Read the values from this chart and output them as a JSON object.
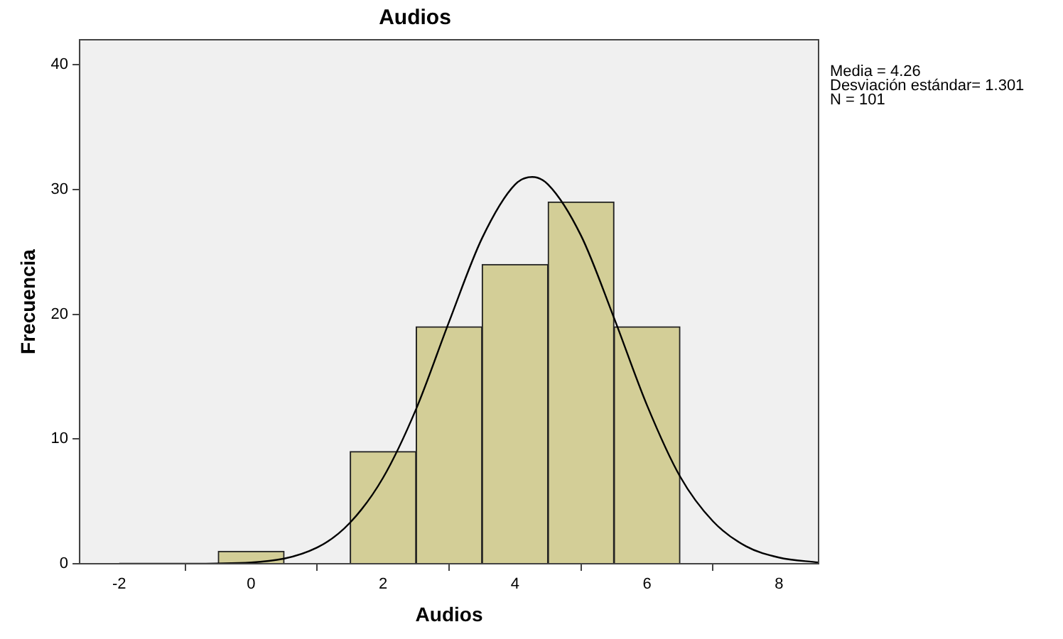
{
  "chart_data": {
    "type": "histogram",
    "title": "Audios",
    "xlabel": "Audios",
    "ylabel": "Frecuencia",
    "xlim": [
      -2.6,
      8.6
    ],
    "xticks": [
      -2,
      0,
      2,
      4,
      6,
      8
    ],
    "ylim": [
      0,
      42
    ],
    "yticks": [
      0,
      10,
      20,
      30,
      40
    ],
    "grid": false,
    "legend": false,
    "marker": "none",
    "annotations": [
      "Media = 4.26",
      "Desviación estándar= 1.301",
      "N = 101"
    ],
    "series": [
      {
        "bins": [
          -0.5,
          0.5,
          1.5,
          2.5,
          3.5,
          4.5,
          5.5,
          6.5
        ],
        "values": [
          1,
          0,
          9,
          19,
          24,
          29,
          19
        ],
        "color": "#d3ce97"
      },
      {
        "type": "line",
        "color": "#000000",
        "line_style": "solid",
        "x": [
          -2,
          -1,
          0,
          1,
          1.5,
          2,
          2.5,
          3,
          3.5,
          4,
          4.26,
          4.5,
          5,
          5.5,
          6,
          6.5,
          7,
          7.5,
          8,
          8.6
        ],
        "values": [
          0,
          0,
          0.1,
          1.3,
          3.3,
          6.9,
          12.4,
          19.4,
          26.1,
          30.4,
          31,
          30.4,
          26.3,
          19.7,
          12.7,
          7,
          3.4,
          1.4,
          0.5,
          0.1
        ]
      }
    ]
  }
}
